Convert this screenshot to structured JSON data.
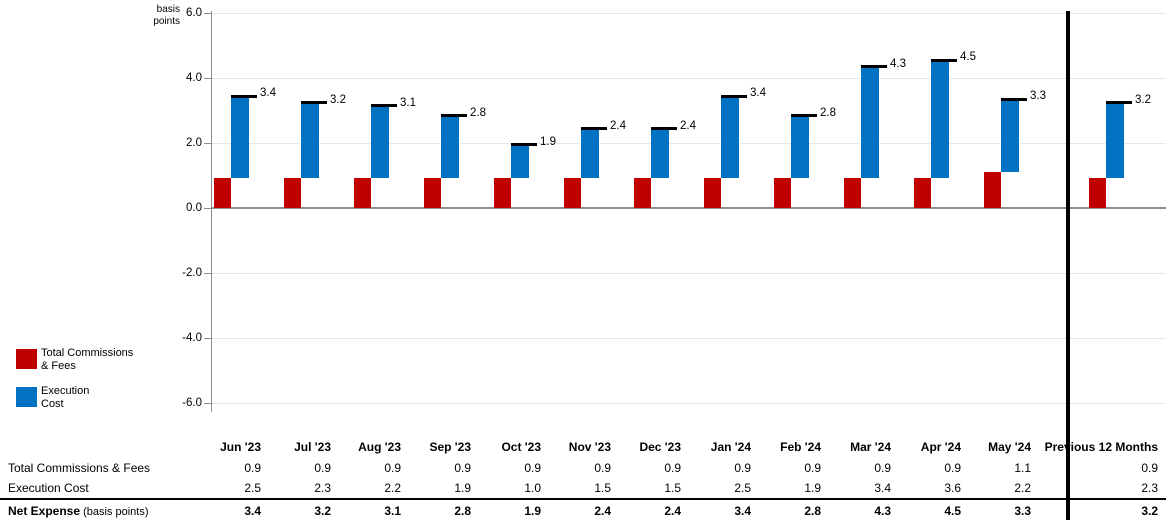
{
  "chart": {
    "y_axis_title": "basis\npoints",
    "legend": [
      {
        "name": "total-commissions-fees",
        "label": "Total Commissions\n& Fees",
        "color": "#C00000"
      },
      {
        "name": "execution-cost",
        "label": "Execution\nCost",
        "color": "#0072C1"
      }
    ]
  },
  "chart_data": {
    "type": "bar",
    "subtype": "stacked",
    "title": "",
    "xlabel": "",
    "ylabel": "basis points",
    "ylim": [
      -6.0,
      6.0
    ],
    "yticks": [
      6.0,
      4.0,
      2.0,
      0.0,
      -2.0,
      -4.0,
      -6.0
    ],
    "ytick_labels": [
      "6.0",
      "4.0",
      "2.0",
      "0.0",
      "-2.0",
      "-4.0",
      "-6.0"
    ],
    "grid": true,
    "grid_color": "#DFE8F3",
    "axis_color": "#8C8C8C",
    "legend_position": "bottom-left",
    "separator_before_last_category": true,
    "categories": [
      "Jun '23",
      "Jul '23",
      "Aug '23",
      "Sep '23",
      "Oct '23",
      "Nov '23",
      "Dec '23",
      "Jan '24",
      "Feb '24",
      "Mar '24",
      "Apr '24",
      "May '24",
      "Previous 12 Months"
    ],
    "series": [
      {
        "name": "Total Commissions & Fees",
        "color": "#C00000",
        "values": [
          0.9,
          0.9,
          0.9,
          0.9,
          0.9,
          0.9,
          0.9,
          0.9,
          0.9,
          0.9,
          0.9,
          1.1,
          0.9
        ]
      },
      {
        "name": "Execution Cost",
        "color": "#0072C1",
        "values": [
          2.5,
          2.3,
          2.2,
          1.9,
          1.0,
          1.5,
          1.5,
          2.5,
          1.9,
          3.4,
          3.6,
          2.2,
          2.3
        ]
      }
    ],
    "totals_name": "Net Expense",
    "totals": [
      3.4,
      3.2,
      3.1,
      2.8,
      1.9,
      2.4,
      2.4,
      3.4,
      2.8,
      4.3,
      4.5,
      3.3,
      3.2
    ]
  },
  "table": {
    "col_headers": [
      "Jun '23",
      "Jul '23",
      "Aug '23",
      "Sep '23",
      "Oct '23",
      "Nov '23",
      "Dec '23",
      "Jan '24",
      "Feb '24",
      "Mar '24",
      "Apr '24",
      "May '24"
    ],
    "prev_col_header": "Previous\n12 Months",
    "rows": [
      {
        "name": "total-commissions-fees",
        "label": "Total Commissions & Fees",
        "suffix": "",
        "bold": false,
        "values": [
          "0.9",
          "0.9",
          "0.9",
          "0.9",
          "0.9",
          "0.9",
          "0.9",
          "0.9",
          "0.9",
          "0.9",
          "0.9",
          "1.1"
        ],
        "prev": "0.9"
      },
      {
        "name": "execution-cost",
        "label": "Execution Cost",
        "suffix": "",
        "bold": false,
        "values": [
          "2.5",
          "2.3",
          "2.2",
          "1.9",
          "1.0",
          "1.5",
          "1.5",
          "2.5",
          "1.9",
          "3.4",
          "3.6",
          "2.2"
        ],
        "prev": "2.3"
      },
      {
        "name": "net-expense",
        "label": "Net Expense",
        "suffix": " (basis points)",
        "bold": true,
        "values": [
          "3.4",
          "3.2",
          "3.1",
          "2.8",
          "1.9",
          "2.4",
          "2.4",
          "3.4",
          "2.8",
          "4.3",
          "4.5",
          "3.3"
        ],
        "prev": "3.2"
      }
    ]
  }
}
